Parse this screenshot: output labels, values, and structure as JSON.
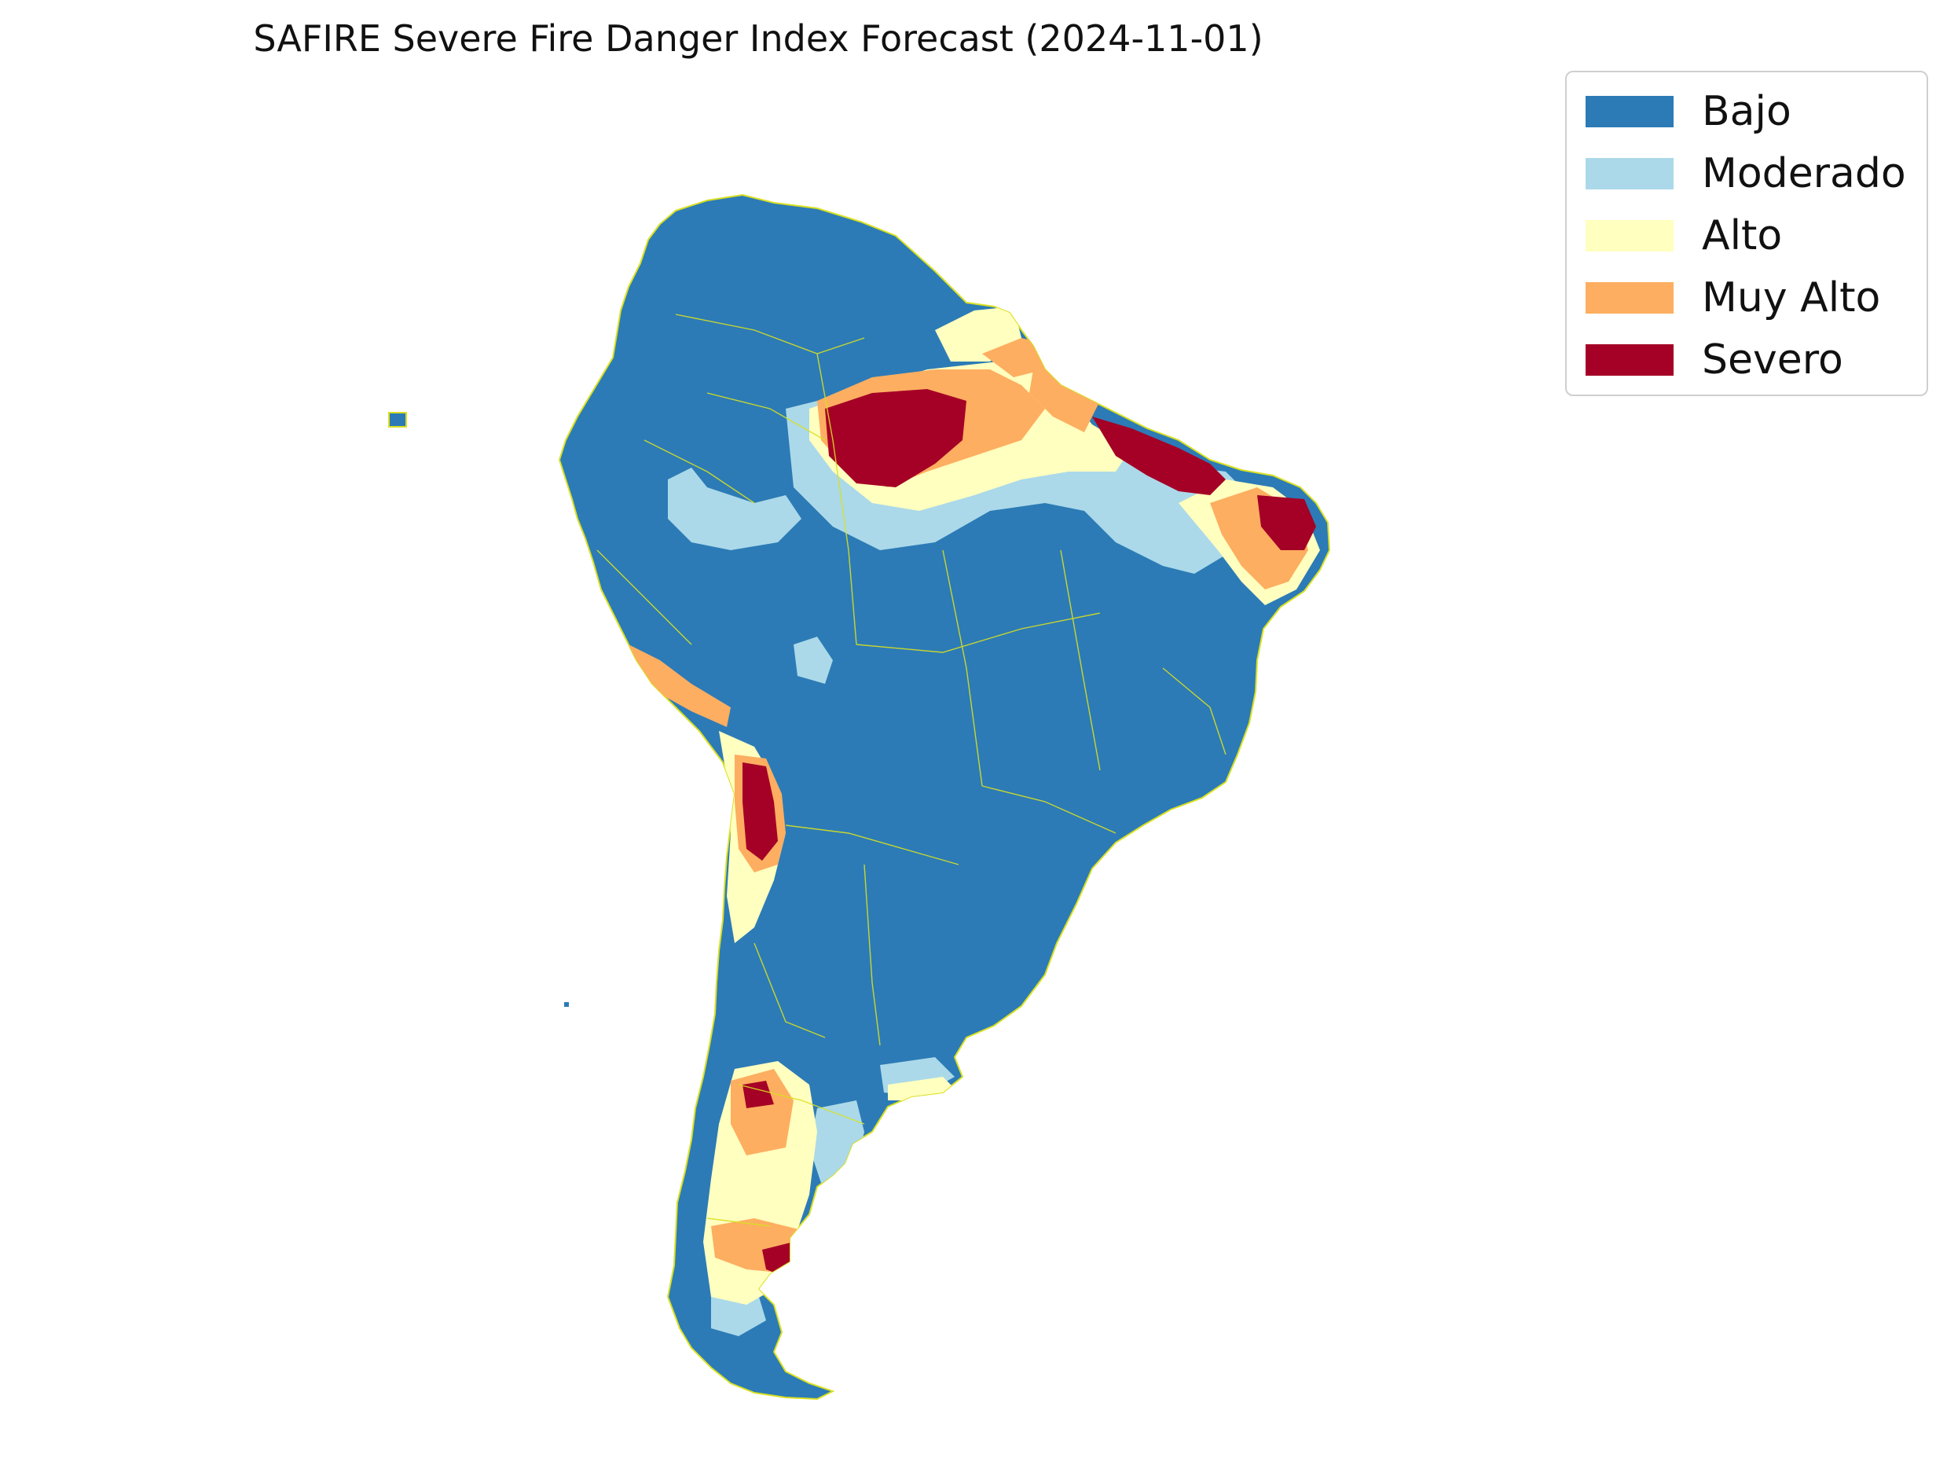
{
  "title": "SAFIRE Severe Fire Danger Index Forecast (2024-11-01)",
  "legend": {
    "items": [
      {
        "label": "Bajo",
        "color": "#2c7bb6"
      },
      {
        "label": "Moderado",
        "color": "#abd9e9"
      },
      {
        "label": "Alto",
        "color": "#ffffbf"
      },
      {
        "label": "Muy Alto",
        "color": "#fdae61"
      },
      {
        "label": "Severo",
        "color": "#a50026"
      }
    ]
  },
  "map": {
    "region": "South America",
    "boundary_color": "#d9e021"
  }
}
